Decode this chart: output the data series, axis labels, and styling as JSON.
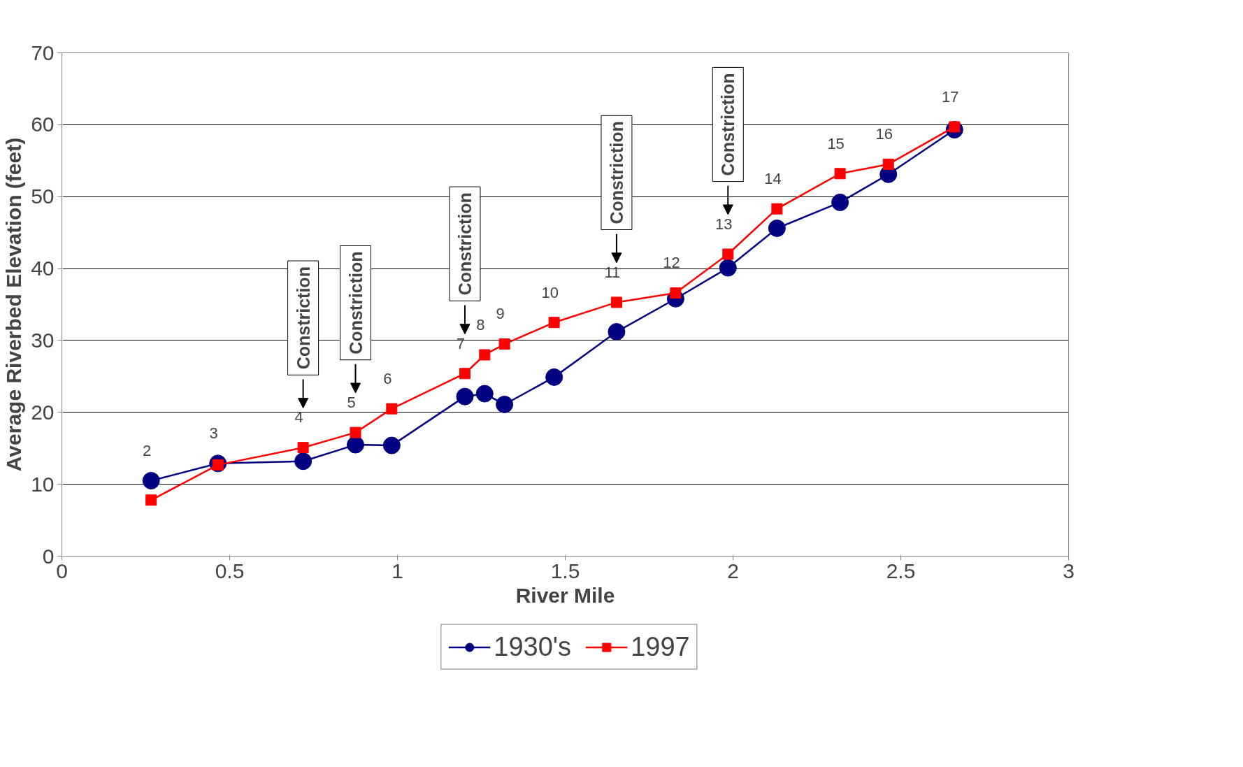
{
  "chart_data": {
    "type": "line",
    "xlabel": "River Mile",
    "ylabel": "Average Riverbed Elevation (feet)",
    "x": [
      0.266,
      0.465,
      0.719,
      0.875,
      0.983,
      1.201,
      1.26,
      1.319,
      1.467,
      1.653,
      1.829,
      1.985,
      2.131,
      2.319,
      2.463,
      2.66
    ],
    "series": [
      {
        "name": "1930's",
        "color": "#000080",
        "marker": "circle",
        "values": [
          10.5,
          12.9,
          13.2,
          15.5,
          15.4,
          22.2,
          22.6,
          21.1,
          24.9,
          31.2,
          35.8,
          40.1,
          45.6,
          49.2,
          53.1,
          59.3
        ]
      },
      {
        "name": "1997",
        "color": "#ff0000",
        "marker": "square",
        "values": [
          7.8,
          12.7,
          15.1,
          17.2,
          20.5,
          25.4,
          28.0,
          29.5,
          32.5,
          35.3,
          36.6,
          42.0,
          48.3,
          53.2,
          54.5,
          59.7
        ]
      }
    ],
    "xlim": [
      0,
      3
    ],
    "xticks": [
      0,
      0.5,
      1,
      1.5,
      2,
      2.5,
      3
    ],
    "ylim": [
      0,
      70
    ],
    "yticks": [
      0,
      10,
      20,
      30,
      40,
      50,
      60,
      70
    ],
    "grid": "y",
    "legend": "bottom",
    "line_style": "solid",
    "annotations": [
      {
        "text": "2",
        "x": 0.266,
        "y": 10.5
      },
      {
        "text": "3",
        "x": 0.465,
        "y": 12.9
      },
      {
        "text": "4",
        "x": 0.719,
        "y": 15.1
      },
      {
        "text": "5",
        "x": 0.875,
        "y": 17.2
      },
      {
        "text": "6",
        "x": 0.983,
        "y": 20.5
      },
      {
        "text": "7",
        "x": 1.201,
        "y": 25.4
      },
      {
        "text": "8",
        "x": 1.26,
        "y": 28.0
      },
      {
        "text": "9",
        "x": 1.319,
        "y": 29.5
      },
      {
        "text": "10",
        "x": 1.467,
        "y": 32.5
      },
      {
        "text": "11",
        "x": 1.653,
        "y": 35.3
      },
      {
        "text": "12",
        "x": 1.829,
        "y": 36.6
      },
      {
        "text": "13",
        "x": 1.985,
        "y": 42.0
      },
      {
        "text": "14",
        "x": 2.131,
        "y": 48.3
      },
      {
        "text": "15",
        "x": 2.319,
        "y": 53.2
      },
      {
        "text": "16",
        "x": 2.463,
        "y": 54.5
      },
      {
        "text": "17",
        "x": 2.66,
        "y": 59.7
      },
      "Constriction",
      "Constriction",
      "Constriction",
      "Constriction",
      "Constriction"
    ]
  }
}
